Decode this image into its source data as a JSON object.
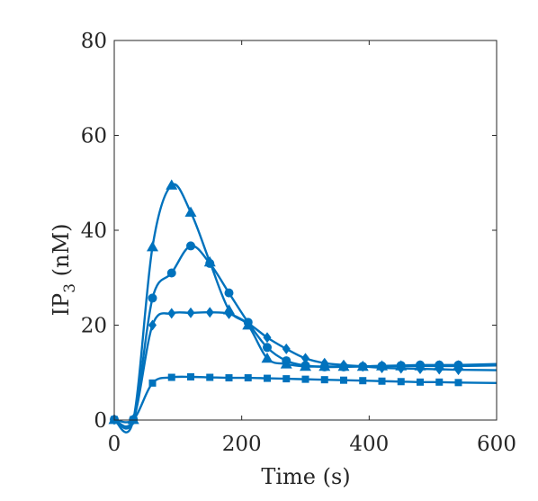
{
  "chart_data": {
    "type": "line",
    "title": "",
    "xlabel": "Time (s)",
    "ylabel": {
      "main": "IP",
      "sub": "3",
      "rest": " (nM)"
    },
    "xlim": [
      0,
      600
    ],
    "ylim": [
      0,
      80
    ],
    "xticks": [
      0,
      200,
      400,
      600
    ],
    "yticks": [
      0,
      20,
      40,
      60,
      80
    ],
    "grid": false,
    "legend": "none",
    "color": "#0072BD",
    "series": [
      {
        "marker": "triangle",
        "values": [
          [
            0,
            0.1
          ],
          [
            30,
            0.1
          ],
          [
            60,
            36.5
          ],
          [
            90,
            49.5
          ],
          [
            120,
            43.8
          ],
          [
            150,
            33.3
          ],
          [
            180,
            23.2
          ],
          [
            210,
            20
          ],
          [
            240,
            13
          ],
          [
            270,
            11.8
          ],
          [
            300,
            11.3
          ],
          [
            330,
            11.3
          ],
          [
            360,
            11.3
          ],
          [
            390,
            11.3
          ],
          [
            420,
            11.4
          ],
          [
            450,
            11.4
          ],
          [
            480,
            11.4
          ],
          [
            510,
            11.4
          ],
          [
            540,
            11.4
          ]
        ],
        "marker_points": [
          [
            0,
            0.1
          ],
          [
            30,
            0.1
          ],
          [
            60,
            36.5
          ],
          [
            90,
            49.5
          ],
          [
            120,
            43.8
          ],
          [
            150,
            33.3
          ],
          [
            180,
            23.2
          ],
          [
            210,
            20
          ],
          [
            240,
            13
          ],
          [
            270,
            11.8
          ],
          [
            300,
            11.3
          ],
          [
            330,
            11.3
          ],
          [
            360,
            11.3
          ],
          [
            390,
            11.3
          ],
          [
            420,
            11.4
          ],
          [
            450,
            11.4
          ],
          [
            480,
            11.4
          ],
          [
            510,
            11.4
          ],
          [
            540,
            11.4
          ]
        ],
        "end": [
          600,
          11.5
        ]
      },
      {
        "marker": "circle",
        "values": [
          [
            0,
            0.1
          ],
          [
            30,
            0.1
          ],
          [
            60,
            25.7
          ],
          [
            90,
            31
          ],
          [
            120,
            36.7
          ],
          [
            150,
            33
          ],
          [
            180,
            26.8
          ],
          [
            210,
            20.6
          ],
          [
            240,
            15.3
          ],
          [
            270,
            12.5
          ],
          [
            300,
            11.5
          ],
          [
            330,
            11.2
          ],
          [
            360,
            11.2
          ],
          [
            390,
            11.3
          ],
          [
            420,
            11.4
          ],
          [
            450,
            11.5
          ],
          [
            480,
            11.6
          ],
          [
            510,
            11.6
          ],
          [
            540,
            11.6
          ]
        ],
        "marker_points": [
          [
            0,
            0.1
          ],
          [
            30,
            0.1
          ],
          [
            60,
            25.7
          ],
          [
            90,
            31
          ],
          [
            120,
            36.7
          ],
          [
            150,
            33
          ],
          [
            180,
            26.8
          ],
          [
            210,
            20.6
          ],
          [
            240,
            15.3
          ],
          [
            270,
            12.5
          ],
          [
            300,
            11.5
          ],
          [
            330,
            11.2
          ],
          [
            360,
            11.2
          ],
          [
            390,
            11.3
          ],
          [
            420,
            11.4
          ],
          [
            450,
            11.5
          ],
          [
            480,
            11.6
          ],
          [
            510,
            11.6
          ],
          [
            540,
            11.6
          ]
        ],
        "end": [
          600,
          11.8
        ]
      },
      {
        "marker": "diamond",
        "values": [
          [
            0,
            0.1
          ],
          [
            30,
            0.1
          ],
          [
            60,
            20
          ],
          [
            90,
            22.5
          ],
          [
            120,
            22.6
          ],
          [
            150,
            22.7
          ],
          [
            180,
            22.4
          ],
          [
            210,
            20.4
          ],
          [
            240,
            17.4
          ],
          [
            270,
            15
          ],
          [
            300,
            13
          ],
          [
            330,
            12
          ],
          [
            360,
            11.6
          ],
          [
            390,
            11.3
          ],
          [
            420,
            11
          ],
          [
            450,
            10.9
          ],
          [
            480,
            10.8
          ],
          [
            510,
            10.7
          ],
          [
            540,
            10.6
          ]
        ],
        "marker_points": [
          [
            0,
            0.1
          ],
          [
            30,
            0.1
          ],
          [
            60,
            20
          ],
          [
            90,
            22.5
          ],
          [
            120,
            22.6
          ],
          [
            150,
            22.7
          ],
          [
            180,
            22.4
          ],
          [
            210,
            20.4
          ],
          [
            240,
            17.4
          ],
          [
            270,
            15
          ],
          [
            300,
            13
          ],
          [
            330,
            12
          ],
          [
            360,
            11.6
          ],
          [
            390,
            11.3
          ],
          [
            420,
            11
          ],
          [
            450,
            10.9
          ],
          [
            480,
            10.8
          ],
          [
            510,
            10.7
          ],
          [
            540,
            10.6
          ]
        ],
        "end": [
          600,
          10.5
        ]
      },
      {
        "marker": "square",
        "values": [
          [
            0,
            0.1
          ],
          [
            30,
            0.1
          ],
          [
            60,
            7.8
          ],
          [
            90,
            9
          ],
          [
            120,
            9.1
          ],
          [
            150,
            9
          ],
          [
            180,
            8.9
          ],
          [
            210,
            8.9
          ],
          [
            240,
            8.8
          ],
          [
            270,
            8.7
          ],
          [
            300,
            8.6
          ],
          [
            330,
            8.5
          ],
          [
            360,
            8.4
          ],
          [
            390,
            8.3
          ],
          [
            420,
            8.2
          ],
          [
            450,
            8.1
          ],
          [
            480,
            8
          ],
          [
            510,
            8
          ],
          [
            540,
            7.9
          ]
        ],
        "marker_points": [
          [
            0,
            0.1
          ],
          [
            30,
            0.1
          ],
          [
            60,
            7.8
          ],
          [
            90,
            9
          ],
          [
            120,
            9.1
          ],
          [
            150,
            9
          ],
          [
            180,
            8.9
          ],
          [
            210,
            8.9
          ],
          [
            240,
            8.8
          ],
          [
            270,
            8.7
          ],
          [
            300,
            8.6
          ],
          [
            330,
            8.5
          ],
          [
            360,
            8.4
          ],
          [
            390,
            8.3
          ],
          [
            420,
            8.2
          ],
          [
            450,
            8.1
          ],
          [
            480,
            8
          ],
          [
            510,
            8
          ],
          [
            540,
            7.9
          ]
        ],
        "end": [
          600,
          7.8
        ]
      }
    ]
  }
}
